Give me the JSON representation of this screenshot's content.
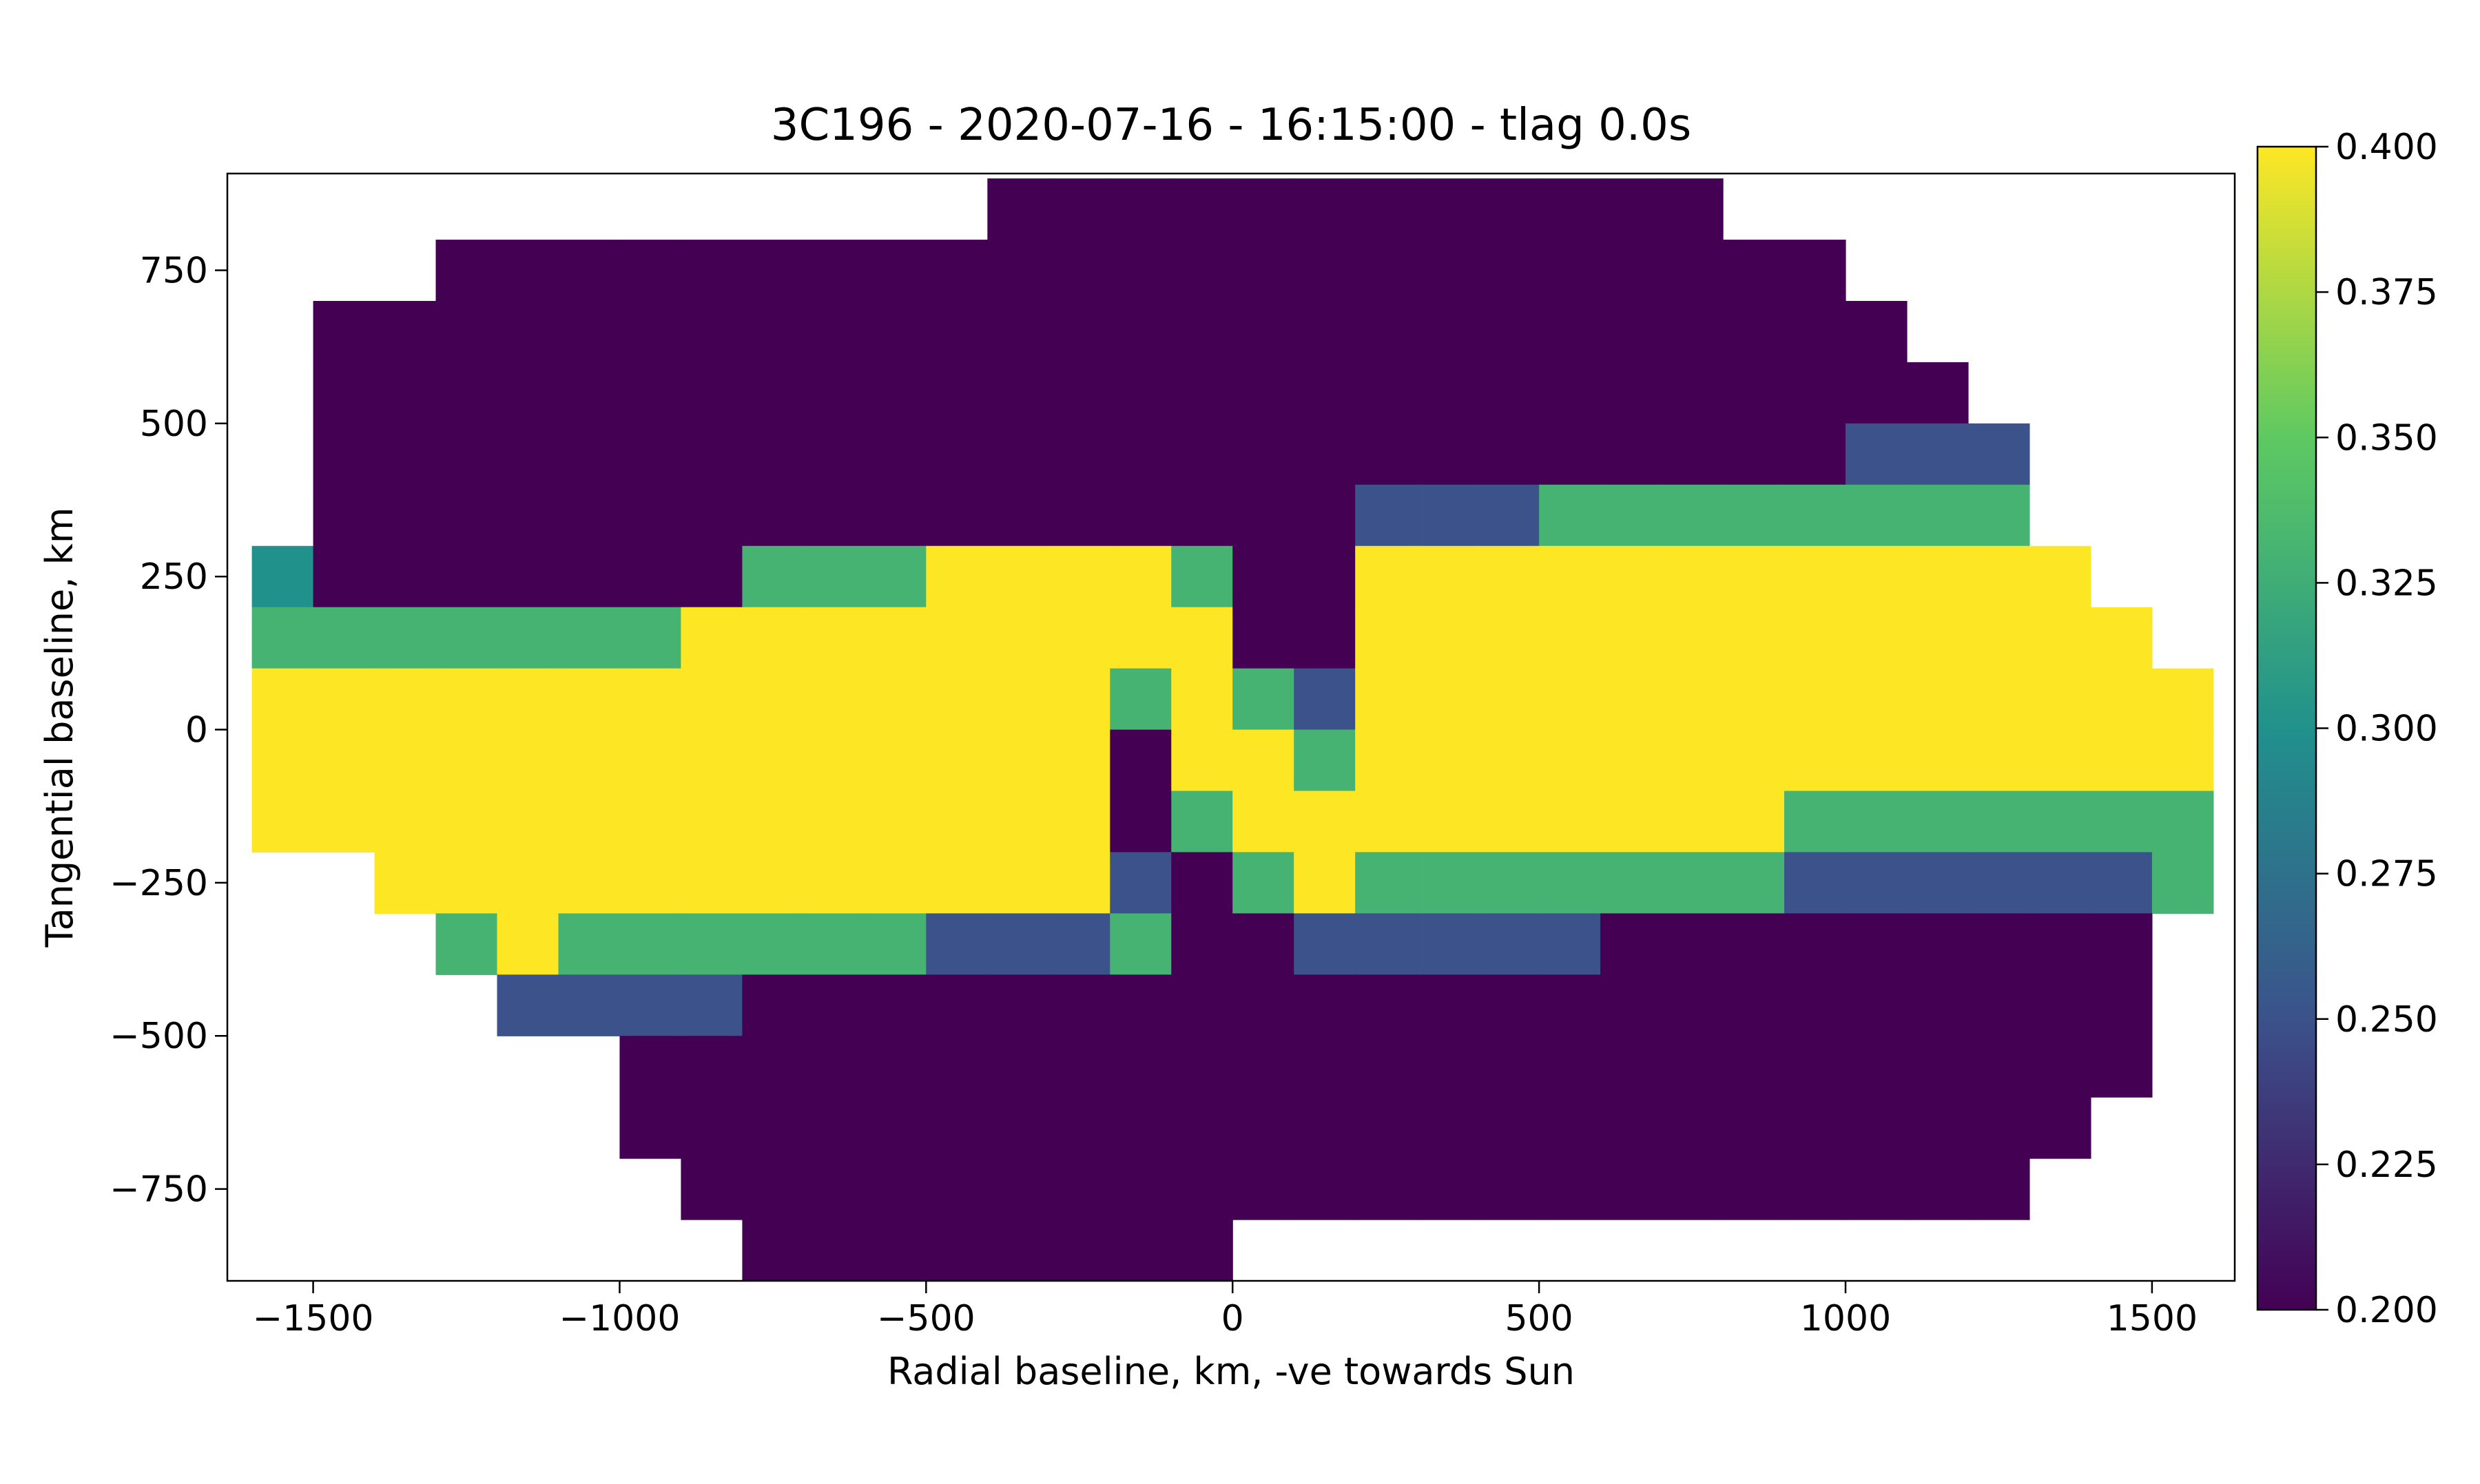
{
  "chart_data": {
    "type": "heatmap",
    "title": "3C196 - 2020-07-16 - 16:15:00 - tlag 0.0s",
    "xlabel": "Radial baseline, km, -ve towards Sun",
    "ylabel": "Tangential baseline, km",
    "colormap": "viridis",
    "xlim": [
      -1640,
      1635
    ],
    "ylim": [
      -900,
      908
    ],
    "xticks": [
      {
        "value": -1500,
        "label": "−1500"
      },
      {
        "value": -1000,
        "label": "−1000"
      },
      {
        "value": -500,
        "label": "−500"
      },
      0,
      500,
      1000,
      1500
    ],
    "yticks": [
      {
        "value": -750,
        "label": "−750"
      },
      {
        "value": -500,
        "label": "−500"
      },
      {
        "value": -250,
        "label": "−250"
      },
      0,
      250,
      500,
      750
    ],
    "zlim": [
      0.2,
      0.4
    ],
    "zticks": [
      {
        "value": 0.2,
        "label": "0.200"
      },
      {
        "value": 0.225,
        "label": "0.225"
      },
      {
        "value": 0.25,
        "label": "0.250"
      },
      {
        "value": 0.275,
        "label": "0.275"
      },
      {
        "value": 0.3,
        "label": "0.300"
      },
      {
        "value": 0.325,
        "label": "0.325"
      },
      {
        "value": 0.35,
        "label": "0.350"
      },
      {
        "value": 0.375,
        "label": "0.375"
      },
      {
        "value": 0.4,
        "label": "0.400"
      }
    ],
    "x": [
      -1550,
      -1450,
      -1350,
      -1250,
      -1150,
      -1050,
      -950,
      -850,
      -750,
      -650,
      -550,
      -450,
      -350,
      -250,
      -150,
      -50,
      50,
      150,
      250,
      350,
      450,
      550,
      650,
      750,
      850,
      950,
      1050,
      1150,
      1250,
      1350,
      1450,
      1550
    ],
    "y": [
      850,
      750,
      650,
      550,
      450,
      350,
      250,
      150,
      50,
      -50,
      -150,
      -250,
      -350,
      -450,
      -550,
      -650,
      -750,
      -850
    ],
    "z": [
      [
        null,
        null,
        null,
        null,
        null,
        null,
        null,
        null,
        null,
        null,
        null,
        null,
        0.2,
        0.2,
        0.2,
        0.2,
        0.2,
        0.2,
        0.2,
        0.2,
        0.2,
        0.2,
        0.2,
        0.2,
        null,
        null,
        null,
        null,
        null,
        null,
        null,
        null
      ],
      [
        null,
        null,
        null,
        0.2,
        0.2,
        0.2,
        0.2,
        0.2,
        0.2,
        0.2,
        0.2,
        0.2,
        0.2,
        0.2,
        0.2,
        0.2,
        0.2,
        0.2,
        0.2,
        0.2,
        0.2,
        0.2,
        0.2,
        0.2,
        0.2,
        0.2,
        null,
        null,
        null,
        null,
        null,
        null
      ],
      [
        null,
        0.2,
        0.2,
        0.2,
        0.2,
        0.2,
        0.2,
        0.2,
        0.2,
        0.2,
        0.2,
        0.2,
        0.2,
        0.2,
        0.2,
        0.2,
        0.2,
        0.2,
        0.2,
        0.2,
        0.2,
        0.2,
        0.2,
        0.2,
        0.2,
        0.2,
        0.2,
        null,
        null,
        null,
        null,
        null
      ],
      [
        null,
        0.2,
        0.2,
        0.2,
        0.2,
        0.2,
        0.2,
        0.2,
        0.2,
        0.2,
        0.2,
        0.2,
        0.2,
        0.2,
        0.2,
        0.2,
        0.2,
        0.2,
        0.2,
        0.2,
        0.2,
        0.2,
        0.2,
        0.2,
        0.2,
        0.2,
        0.2,
        0.2,
        null,
        null,
        null,
        null
      ],
      [
        null,
        0.2,
        0.2,
        0.2,
        0.2,
        0.2,
        0.2,
        0.2,
        0.2,
        0.2,
        0.2,
        0.2,
        0.2,
        0.2,
        0.2,
        0.2,
        0.2,
        0.2,
        0.2,
        0.2,
        0.2,
        0.2,
        0.2,
        0.2,
        0.2,
        0.2,
        0.25,
        0.25,
        0.25,
        null,
        null,
        null
      ],
      [
        null,
        0.2,
        0.2,
        0.2,
        0.2,
        0.2,
        0.2,
        0.2,
        0.2,
        0.2,
        0.2,
        0.2,
        0.2,
        0.2,
        0.2,
        0.2,
        0.2,
        0.2,
        0.25,
        0.25,
        0.25,
        0.33,
        0.33,
        0.33,
        0.33,
        0.33,
        0.33,
        0.33,
        0.33,
        null,
        null,
        null
      ],
      [
        0.3,
        0.2,
        0.2,
        0.2,
        0.2,
        0.2,
        0.2,
        0.2,
        0.33,
        0.33,
        0.33,
        0.4,
        0.4,
        0.4,
        0.4,
        0.33,
        0.2,
        0.2,
        0.4,
        0.4,
        0.4,
        0.4,
        0.4,
        0.4,
        0.4,
        0.4,
        0.4,
        0.4,
        0.4,
        0.4,
        null,
        null
      ],
      [
        0.33,
        0.33,
        0.33,
        0.33,
        0.33,
        0.33,
        0.33,
        0.4,
        0.4,
        0.4,
        0.4,
        0.4,
        0.4,
        0.4,
        0.4,
        0.4,
        0.2,
        0.2,
        0.4,
        0.4,
        0.4,
        0.4,
        0.4,
        0.4,
        0.4,
        0.4,
        0.4,
        0.4,
        0.4,
        0.4,
        0.4,
        null
      ],
      [
        0.4,
        0.4,
        0.4,
        0.4,
        0.4,
        0.4,
        0.4,
        0.4,
        0.4,
        0.4,
        0.4,
        0.4,
        0.4,
        0.4,
        0.33,
        0.4,
        0.33,
        0.25,
        0.4,
        0.4,
        0.4,
        0.4,
        0.4,
        0.4,
        0.4,
        0.4,
        0.4,
        0.4,
        0.4,
        0.4,
        0.4,
        0.4
      ],
      [
        0.4,
        0.4,
        0.4,
        0.4,
        0.4,
        0.4,
        0.4,
        0.4,
        0.4,
        0.4,
        0.4,
        0.4,
        0.4,
        0.4,
        0.2,
        0.4,
        0.4,
        0.33,
        0.4,
        0.4,
        0.4,
        0.4,
        0.4,
        0.4,
        0.4,
        0.4,
        0.4,
        0.4,
        0.4,
        0.4,
        0.4,
        0.4
      ],
      [
        0.4,
        0.4,
        0.4,
        0.4,
        0.4,
        0.4,
        0.4,
        0.4,
        0.4,
        0.4,
        0.4,
        0.4,
        0.4,
        0.4,
        0.2,
        0.33,
        0.4,
        0.4,
        0.4,
        0.4,
        0.4,
        0.4,
        0.4,
        0.4,
        0.4,
        0.33,
        0.33,
        0.33,
        0.33,
        0.33,
        0.33,
        0.33
      ],
      [
        null,
        null,
        0.4,
        0.4,
        0.4,
        0.4,
        0.4,
        0.4,
        0.4,
        0.4,
        0.4,
        0.4,
        0.4,
        0.4,
        0.25,
        0.2,
        0.33,
        0.4,
        0.33,
        0.33,
        0.33,
        0.33,
        0.33,
        0.33,
        0.33,
        0.25,
        0.25,
        0.25,
        0.25,
        0.25,
        0.25,
        0.33
      ],
      [
        null,
        null,
        null,
        0.33,
        0.4,
        0.33,
        0.33,
        0.33,
        0.33,
        0.33,
        0.33,
        0.25,
        0.25,
        0.25,
        0.33,
        0.2,
        0.2,
        0.25,
        0.25,
        0.25,
        0.25,
        0.25,
        0.2,
        0.2,
        0.2,
        0.2,
        0.2,
        0.2,
        0.2,
        0.2,
        0.2,
        null
      ],
      [
        null,
        null,
        null,
        null,
        0.25,
        0.25,
        0.25,
        0.25,
        0.2,
        0.2,
        0.2,
        0.2,
        0.2,
        0.2,
        0.2,
        0.2,
        0.2,
        0.2,
        0.2,
        0.2,
        0.2,
        0.2,
        0.2,
        0.2,
        0.2,
        0.2,
        0.2,
        0.2,
        0.2,
        0.2,
        0.2,
        null
      ],
      [
        null,
        null,
        null,
        null,
        null,
        null,
        0.2,
        0.2,
        0.2,
        0.2,
        0.2,
        0.2,
        0.2,
        0.2,
        0.2,
        0.2,
        0.2,
        0.2,
        0.2,
        0.2,
        0.2,
        0.2,
        0.2,
        0.2,
        0.2,
        0.2,
        0.2,
        0.2,
        0.2,
        0.2,
        0.2,
        null
      ],
      [
        null,
        null,
        null,
        null,
        null,
        null,
        0.2,
        0.2,
        0.2,
        0.2,
        0.2,
        0.2,
        0.2,
        0.2,
        0.2,
        0.2,
        0.2,
        0.2,
        0.2,
        0.2,
        0.2,
        0.2,
        0.2,
        0.2,
        0.2,
        0.2,
        0.2,
        0.2,
        0.2,
        0.2,
        null,
        null
      ],
      [
        null,
        null,
        null,
        null,
        null,
        null,
        null,
        0.2,
        0.2,
        0.2,
        0.2,
        0.2,
        0.2,
        0.2,
        0.2,
        0.2,
        0.2,
        0.2,
        0.2,
        0.2,
        0.2,
        0.2,
        0.2,
        0.2,
        0.2,
        0.2,
        0.2,
        0.2,
        0.2,
        null,
        null,
        null
      ],
      [
        null,
        null,
        null,
        null,
        null,
        null,
        null,
        null,
        0.2,
        0.2,
        0.2,
        0.2,
        0.2,
        0.2,
        0.2,
        0.2,
        null,
        null,
        null,
        null,
        null,
        null,
        null,
        null,
        null,
        null,
        null,
        null,
        null,
        null,
        null,
        null
      ]
    ]
  }
}
